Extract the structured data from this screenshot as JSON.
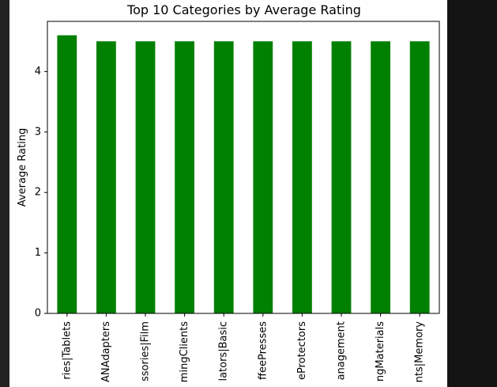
{
  "chart_data": {
    "type": "bar",
    "title": "Top 10 Categories by Average Rating",
    "xlabel": "",
    "ylabel": "Average Rating",
    "ylim": [
      0,
      4.83
    ],
    "yticks": [
      0,
      1,
      2,
      3,
      4
    ],
    "grid": false,
    "bar_color": "#008000",
    "categories": [
      "ries|Tablets",
      "ANAdapters",
      "ssories|Film",
      "mingClients",
      "lators|Basic",
      "ffeePresses",
      "eProtectors",
      "anagement",
      "ngMaterials",
      "nts|Memory"
    ],
    "values": [
      4.6,
      4.5,
      4.5,
      4.5,
      4.5,
      4.5,
      4.5,
      4.5,
      4.5,
      4.5
    ]
  }
}
